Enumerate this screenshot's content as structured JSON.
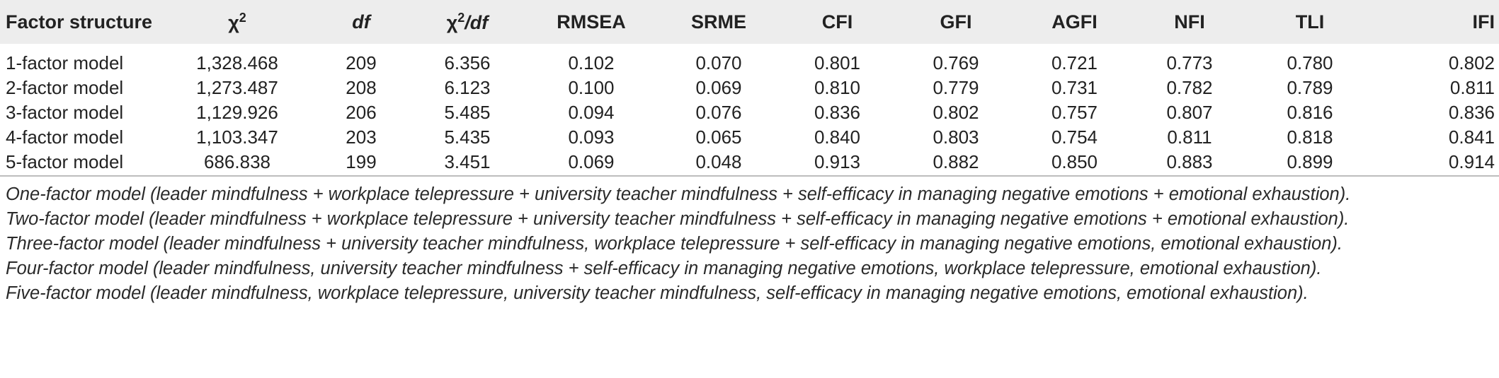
{
  "table": {
    "headers": [
      {
        "key": "factor_structure",
        "parts": [
          "Factor structure"
        ]
      },
      {
        "key": "chi2",
        "parts": [
          "χ",
          "2"
        ]
      },
      {
        "key": "df",
        "parts": [
          "df"
        ]
      },
      {
        "key": "chi2_df",
        "parts": [
          "χ",
          "2",
          "/df"
        ]
      },
      {
        "key": "rmsea",
        "parts": [
          "RMSEA"
        ]
      },
      {
        "key": "srme",
        "parts": [
          "SRME"
        ]
      },
      {
        "key": "cfi",
        "parts": [
          "CFI"
        ]
      },
      {
        "key": "gfi",
        "parts": [
          "GFI"
        ]
      },
      {
        "key": "agfi",
        "parts": [
          "AGFI"
        ]
      },
      {
        "key": "nfi",
        "parts": [
          "NFI"
        ]
      },
      {
        "key": "tli",
        "parts": [
          "TLI"
        ]
      },
      {
        "key": "ifi",
        "parts": [
          "IFI"
        ]
      }
    ],
    "rows": [
      [
        "1-factor model",
        "1,328.468",
        "209",
        "6.356",
        "0.102",
        "0.070",
        "0.801",
        "0.769",
        "0.721",
        "0.773",
        "0.780",
        "0.802"
      ],
      [
        "2-factor model",
        "1,273.487",
        "208",
        "6.123",
        "0.100",
        "0.069",
        "0.810",
        "0.779",
        "0.731",
        "0.782",
        "0.789",
        "0.811"
      ],
      [
        "3-factor model",
        "1,129.926",
        "206",
        "5.485",
        "0.094",
        "0.076",
        "0.836",
        "0.802",
        "0.757",
        "0.807",
        "0.816",
        "0.836"
      ],
      [
        "4-factor model",
        "1,103.347",
        "203",
        "5.435",
        "0.093",
        "0.065",
        "0.840",
        "0.803",
        "0.754",
        "0.811",
        "0.818",
        "0.841"
      ],
      [
        "5-factor model",
        "686.838",
        "199",
        "3.451",
        "0.069",
        "0.048",
        "0.913",
        "0.882",
        "0.850",
        "0.883",
        "0.899",
        "0.914"
      ]
    ]
  },
  "notes": [
    "One-factor model (leader mindfulness + workplace telepressure + university teacher mindfulness + self-efficacy in managing negative emotions + emotional exhaustion).",
    "Two-factor model (leader mindfulness + workplace telepressure + university teacher mindfulness + self-efficacy in managing negative emotions + emotional exhaustion).",
    "Three-factor model (leader mindfulness + university teacher mindfulness, workplace telepressure + self-efficacy in managing negative emotions, emotional exhaustion).",
    "Four-factor model (leader mindfulness, university teacher mindfulness + self-efficacy in managing negative emotions, workplace telepressure, emotional exhaustion).",
    "Five-factor model (leader mindfulness, workplace telepressure, university teacher mindfulness, self-efficacy in managing negative emotions, emotional exhaustion)."
  ],
  "colors": {
    "header_background": "#ededed",
    "rule": "#bdbdbd",
    "text": "#222222"
  }
}
